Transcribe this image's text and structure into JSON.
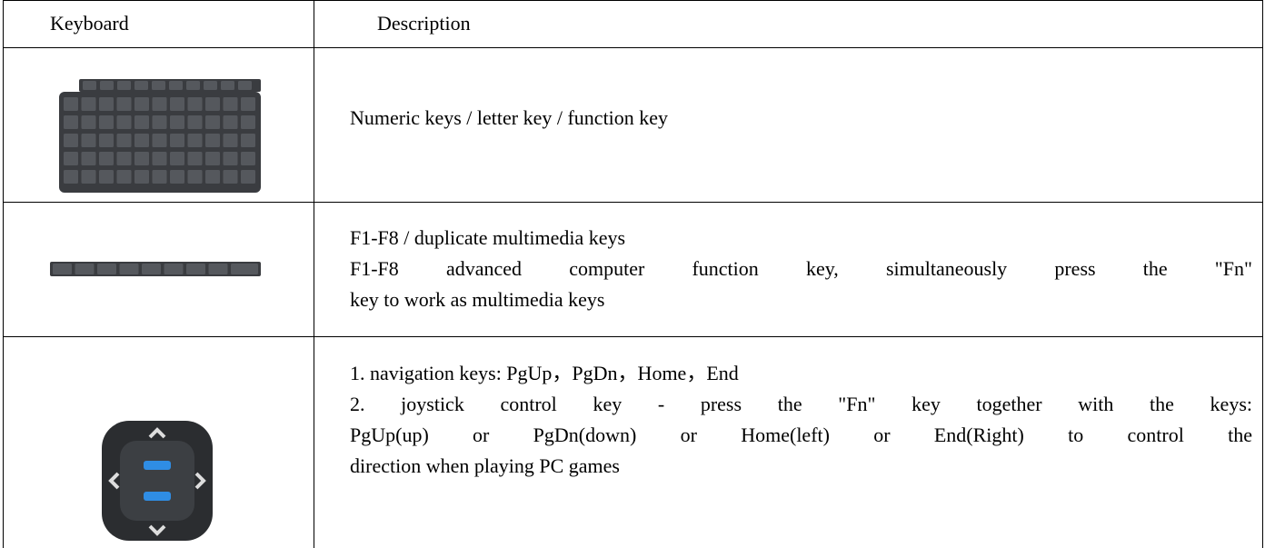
{
  "table": {
    "header": [
      "Keyboard",
      "Description"
    ],
    "rows": [
      {
        "lines": [
          "Numeric keys / letter key / function key"
        ]
      },
      {
        "lines": [
          "F1-F8 / duplicate multimedia keys",
          "F1-F8 advanced computer function key, simultaneously press the \"Fn\"",
          "key to work as multimedia keys"
        ]
      },
      {
        "lines": [
          "1. navigation keys: PgUp，PgDn，Home，End",
          "2. joystick control key - press the \"Fn\" key together with the keys:",
          "PgUp(up) or PgDn(down) or Home(left) or End(Right) to control the",
          "direction when playing PC games"
        ]
      }
    ]
  }
}
